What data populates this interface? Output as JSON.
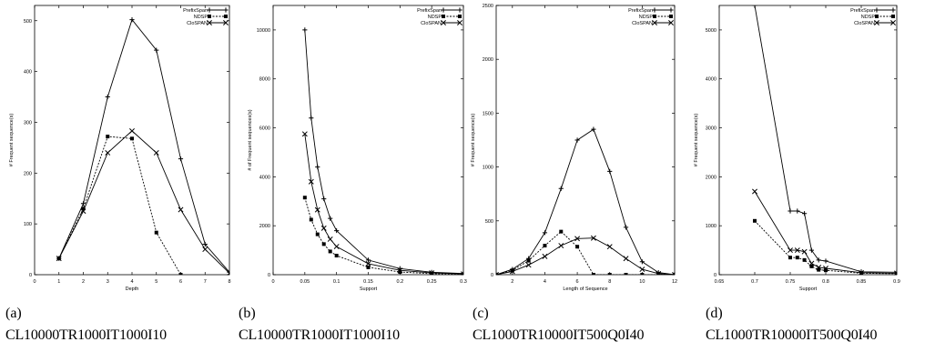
{
  "panels": [
    {
      "label": "(a)",
      "caption": "CL10000TR1000IT1000I10"
    },
    {
      "label": "(b)",
      "caption": "CL10000TR1000IT1000I10"
    },
    {
      "label": "(c)",
      "caption": "CL1000TR10000IT500Q0I40"
    },
    {
      "label": "(d)",
      "caption": "CL1000TR10000IT500Q0I40"
    }
  ],
  "chart_data": [
    {
      "type": "line",
      "xlabel": "Depth",
      "ylabel": "# Frequent sequence(s)",
      "xlim": [
        0,
        8
      ],
      "ylim": [
        0,
        530
      ],
      "xticks": [
        "0",
        "1",
        "2",
        "3",
        "4",
        "5",
        "6",
        "7",
        "8"
      ],
      "xtick_values": [
        0,
        1,
        2,
        3,
        4,
        5,
        6,
        7,
        8
      ],
      "yticks": [
        "0",
        "100",
        "200",
        "300",
        "400",
        "500"
      ],
      "ytick_values": [
        0,
        100,
        200,
        300,
        400,
        500
      ],
      "legend_position": "top-right",
      "series": [
        {
          "name": "PrefixSpan",
          "marker": "plus",
          "dash": "solid",
          "x": [
            1,
            2,
            3,
            4,
            5,
            6,
            7,
            8
          ],
          "y": [
            32,
            140,
            350,
            502,
            442,
            228,
            60,
            5
          ]
        },
        {
          "name": "NDSP",
          "marker": "square",
          "dash": "dotted",
          "x": [
            1,
            2,
            3,
            4,
            5,
            6
          ],
          "y": [
            32,
            130,
            272,
            268,
            83,
            0
          ]
        },
        {
          "name": "CloSPAN",
          "marker": "x",
          "dash": "solid",
          "x": [
            1,
            2,
            3,
            4,
            5,
            6,
            7,
            8
          ],
          "y": [
            32,
            125,
            240,
            283,
            240,
            128,
            50,
            3
          ]
        }
      ]
    },
    {
      "type": "line",
      "xlabel": "Support",
      "ylabel": "# of Frequent sequences(s)",
      "xlim": [
        0,
        0.3
      ],
      "ylim": [
        0,
        11000
      ],
      "xticks": [
        "0",
        "0.05",
        "0.1",
        "0.15",
        "0.2",
        "0.25",
        "0.3"
      ],
      "xtick_values": [
        0,
        0.05,
        0.1,
        0.15,
        0.2,
        0.25,
        0.3
      ],
      "yticks": [
        "0",
        "2000",
        "4000",
        "6000",
        "8000",
        "10000"
      ],
      "ytick_values": [
        0,
        2000,
        4000,
        6000,
        8000,
        10000
      ],
      "legend_position": "top-right",
      "series": [
        {
          "name": "PrefixSpan",
          "marker": "plus",
          "dash": "solid",
          "x": [
            0.05,
            0.06,
            0.07,
            0.08,
            0.09,
            0.1,
            0.15,
            0.2,
            0.25,
            0.3
          ],
          "y": [
            10000,
            6400,
            4400,
            3100,
            2300,
            1800,
            600,
            250,
            100,
            50
          ]
        },
        {
          "name": "NDSP",
          "marker": "square",
          "dash": "dotted",
          "x": [
            0.05,
            0.06,
            0.07,
            0.08,
            0.09,
            0.1,
            0.15,
            0.2,
            0.25,
            0.3
          ],
          "y": [
            3150,
            2250,
            1650,
            1250,
            950,
            780,
            300,
            110,
            40,
            20
          ]
        },
        {
          "name": "CloSPAN",
          "marker": "x",
          "dash": "solid",
          "x": [
            0.05,
            0.06,
            0.07,
            0.08,
            0.09,
            0.1,
            0.15,
            0.2,
            0.25,
            0.3
          ],
          "y": [
            5750,
            3800,
            2650,
            1900,
            1450,
            1150,
            450,
            180,
            70,
            30
          ]
        }
      ]
    },
    {
      "type": "line",
      "xlabel": "Length of Sequence",
      "ylabel": "# Frequent sequence(s)",
      "xlim": [
        1,
        12
      ],
      "ylim": [
        0,
        2500
      ],
      "xticks": [
        "2",
        "4",
        "6",
        "8",
        "10",
        "12"
      ],
      "xtick_values": [
        2,
        4,
        6,
        8,
        10,
        12
      ],
      "yticks": [
        "0",
        "500",
        "1000",
        "1500",
        "2000",
        "2500"
      ],
      "ytick_values": [
        0,
        500,
        1000,
        1500,
        2000,
        2500
      ],
      "legend_position": "top-right",
      "series": [
        {
          "name": "PrefixSpan",
          "marker": "plus",
          "dash": "solid",
          "x": [
            1,
            2,
            3,
            4,
            5,
            6,
            7,
            8,
            9,
            10,
            11,
            12
          ],
          "y": [
            0,
            50,
            150,
            390,
            800,
            1250,
            1350,
            960,
            440,
            120,
            20,
            0
          ]
        },
        {
          "name": "NDSP",
          "marker": "square",
          "dash": "dotted",
          "x": [
            1,
            2,
            3,
            4,
            5,
            6,
            7,
            8,
            9,
            10,
            11,
            12
          ],
          "y": [
            0,
            40,
            130,
            270,
            400,
            260,
            0,
            0,
            0,
            0,
            0,
            0
          ]
        },
        {
          "name": "CloSPAN",
          "marker": "x",
          "dash": "solid",
          "x": [
            1,
            2,
            3,
            4,
            5,
            6,
            7,
            8,
            9,
            10,
            11,
            12
          ],
          "y": [
            0,
            30,
            90,
            170,
            270,
            335,
            340,
            260,
            150,
            50,
            10,
            0
          ]
        }
      ]
    },
    {
      "type": "line",
      "xlabel": "Support",
      "ylabel": "# Frequent sequence(s)",
      "xlim": [
        0.65,
        0.9
      ],
      "ylim": [
        0,
        5500
      ],
      "xticks": [
        "0.65",
        "0.7",
        "0.75",
        "0.8",
        "0.85",
        "0.9"
      ],
      "xtick_values": [
        0.65,
        0.7,
        0.75,
        0.8,
        0.85,
        0.9
      ],
      "yticks": [
        "0",
        "1000",
        "2000",
        "3000",
        "4000",
        "5000"
      ],
      "ytick_values": [
        0,
        1000,
        2000,
        3000,
        4000,
        5000
      ],
      "legend_position": "top-right",
      "series": [
        {
          "name": "PrefixSpan",
          "marker": "plus",
          "dash": "solid",
          "x": [
            0.7,
            0.75,
            0.76,
            0.77,
            0.78,
            0.79,
            0.8,
            0.85,
            0.9
          ],
          "y": [
            5500,
            1300,
            1300,
            1250,
            500,
            300,
            280,
            60,
            50
          ]
        },
        {
          "name": "NDSP",
          "marker": "square",
          "dash": "dotted",
          "x": [
            0.7,
            0.75,
            0.76,
            0.77,
            0.78,
            0.79,
            0.8,
            0.85,
            0.9
          ],
          "y": [
            1100,
            350,
            350,
            300,
            170,
            100,
            90,
            30,
            20
          ]
        },
        {
          "name": "CloSPAN",
          "marker": "x",
          "dash": "solid",
          "x": [
            0.7,
            0.75,
            0.76,
            0.77,
            0.78,
            0.79,
            0.8,
            0.85,
            0.9
          ],
          "y": [
            1700,
            500,
            500,
            470,
            230,
            150,
            130,
            40,
            30
          ]
        }
      ]
    }
  ]
}
